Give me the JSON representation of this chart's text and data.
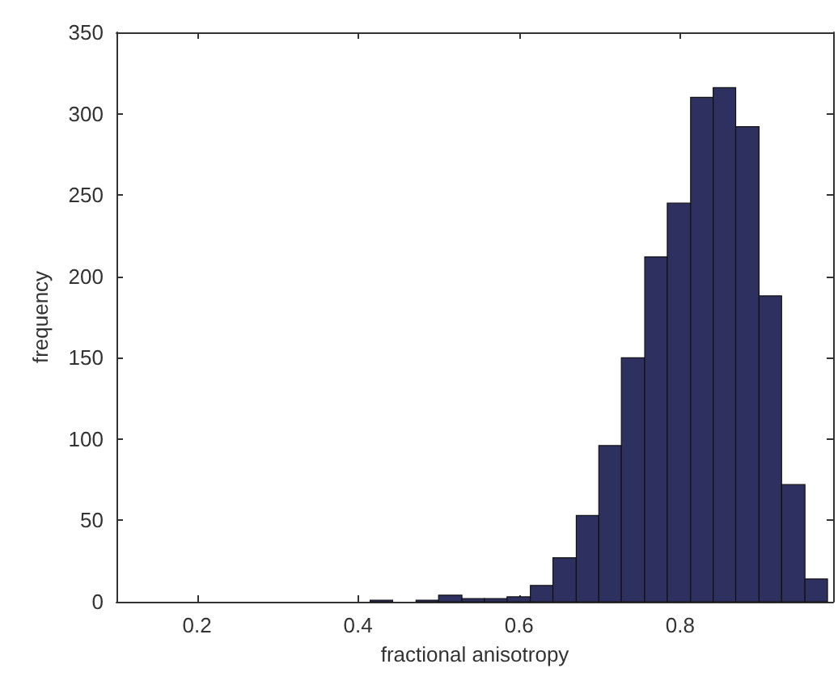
{
  "chart_data": {
    "type": "histogram",
    "xlabel": "fractional anisotropy",
    "ylabel": "frequency",
    "bins": [
      0.415,
      0.443,
      0.472,
      0.5,
      0.529,
      0.557,
      0.585,
      0.614,
      0.642,
      0.671,
      0.699,
      0.727,
      0.756,
      0.784,
      0.813,
      0.841,
      0.869,
      0.898,
      0.926,
      0.955,
      0.983
    ],
    "values": [
      1,
      0,
      1,
      4,
      2,
      2,
      3,
      10,
      27,
      53,
      96,
      150,
      212,
      245,
      310,
      316,
      292,
      188,
      72,
      14
    ],
    "color": "#2e3160",
    "xlim": [
      0.1,
      0.99
    ],
    "xticks": [
      0.2,
      0.4,
      0.6,
      0.8
    ],
    "ylim": [
      0,
      350
    ],
    "yticks": [
      0,
      50,
      100,
      150,
      200,
      250,
      300,
      350
    ],
    "grid": false
  }
}
